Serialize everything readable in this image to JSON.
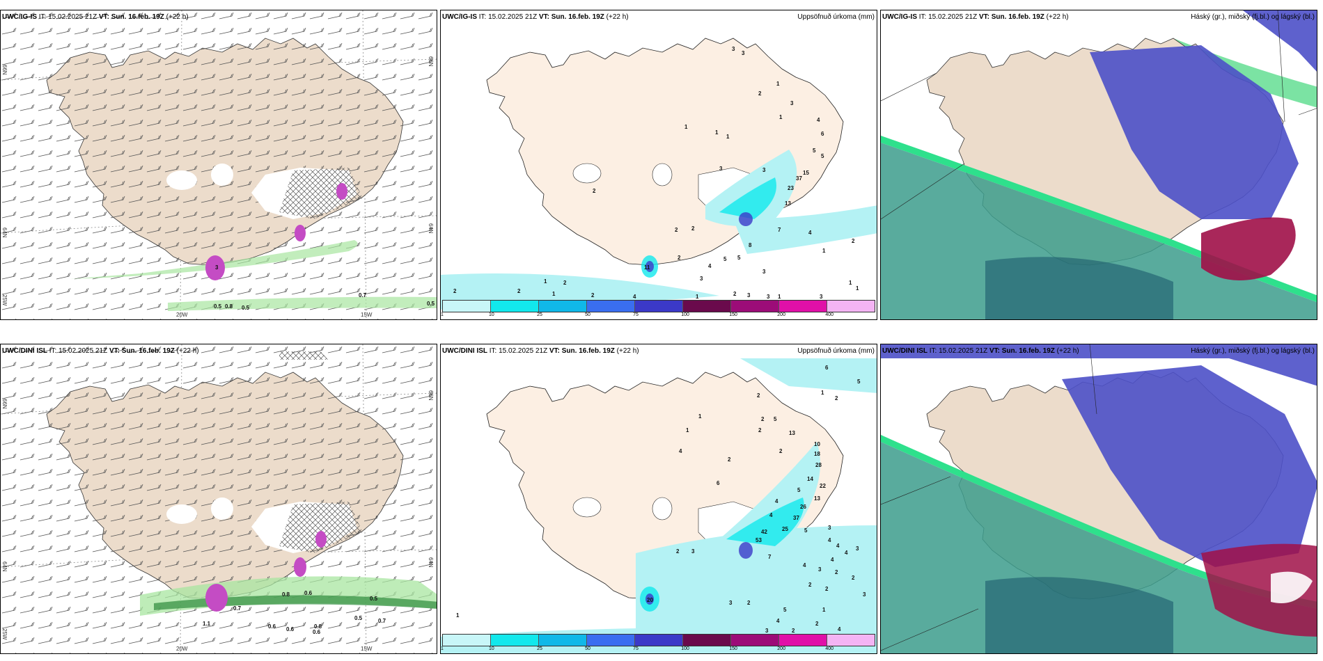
{
  "panels": [
    {
      "model": "UWC/IG-IS",
      "it_label": "IT:",
      "it_value": "15.02.2025 21Z",
      "vt_label": "VT:",
      "vt_value": "Sun. 16.feb. 19Z",
      "lead": "(+22 h)",
      "title": ""
    },
    {
      "model": "UWC/IG-IS",
      "it_label": "IT:",
      "it_value": "15.02.2025 21Z",
      "vt_label": "VT:",
      "vt_value": "Sun. 16.feb. 19Z",
      "lead": "(+22 h)",
      "title": "Uppsöfnuð úrkoma (mm)"
    },
    {
      "model": "UWC/IG-IS",
      "it_label": "IT:",
      "it_value": "15.02.2025 21Z",
      "vt_label": "VT:",
      "vt_value": "Sun. 16.feb. 19Z",
      "lead": "(+22 h)",
      "title": "Háský (gr.), miðský (fj.bl.) og lágský (bl.)"
    },
    {
      "model": "UWC/DINI ISL",
      "it_label": "IT:",
      "it_value": "15.02.2025 21Z",
      "vt_label": "VT:",
      "vt_value": "Sun. 16.feb. 19Z",
      "lead": "(+22 h)",
      "title": ""
    },
    {
      "model": "UWC/DINI ISL",
      "it_label": "IT:",
      "it_value": "15.02.2025 21Z",
      "vt_label": "VT:",
      "vt_value": "Sun. 16.feb. 19Z",
      "lead": "(+22 h)",
      "title": "Uppsöfnuð úrkoma (mm)"
    },
    {
      "model": "UWC/DINI ISL",
      "it_label": "IT:",
      "it_value": "15.02.2025 21Z",
      "vt_label": "VT:",
      "vt_value": "Sun. 16.feb. 19Z",
      "lead": "(+22 h)",
      "title": "Háský (gr.), miðský (fj.bl.) og lágský (bl.)"
    }
  ],
  "axis_labels": {
    "lat_top": "66N",
    "lat_mid": "64N",
    "lat_bottom": "25W",
    "lon_left": "20W",
    "lon_right": "15W"
  },
  "colorbar": {
    "colors": [
      "#c8f6f8",
      "#12e8ec",
      "#10b8e8",
      "#3a6ef0",
      "#3b39c8",
      "#6a0a4c",
      "#9c0c78",
      "#e010a8",
      "#f4b4f4"
    ],
    "ticks": [
      "1",
      "10",
      "25",
      "50",
      "75",
      "100",
      "150",
      "200",
      "400"
    ]
  },
  "map_values": {
    "p1": [
      "3",
      "0.5",
      "0.8",
      "0.5",
      "0.7",
      "0.5"
    ],
    "p2": [
      "3",
      "3",
      "2",
      "1",
      "3",
      "1",
      "1",
      "4",
      "6",
      "5",
      "5",
      "15",
      "37",
      "23",
      "13",
      "3",
      "1",
      "1",
      "3",
      "2",
      "2",
      "2",
      "2",
      "7",
      "4",
      "1",
      "2",
      "8",
      "5",
      "4",
      "5",
      "3",
      "3",
      "3",
      "1",
      "1",
      "2",
      "1",
      "2",
      "2",
      "1",
      "2",
      "4",
      "1",
      "2",
      "3",
      "3",
      "1",
      "11"
    ],
    "p4": [
      "0.5",
      "0.6",
      "0.8",
      "0.7",
      "0.5",
      "0.7",
      "0.6",
      "0.6",
      "0.8",
      "0.6",
      "1.1"
    ],
    "p5": [
      "6",
      "5",
      "1",
      "2",
      "2",
      "2",
      "5",
      "1",
      "1",
      "13",
      "2",
      "10",
      "18",
      "28",
      "2",
      "14",
      "5",
      "22",
      "13",
      "4",
      "2",
      "6",
      "4",
      "26",
      "4",
      "37",
      "25",
      "42",
      "53",
      "5",
      "3",
      "2",
      "3",
      "4",
      "4",
      "4",
      "4",
      "3",
      "7",
      "4",
      "3",
      "2",
      "2",
      "2",
      "2",
      "3",
      "3",
      "2",
      "5",
      "4",
      "1",
      "20",
      "1",
      "4",
      "2",
      "3",
      "2"
    ]
  }
}
